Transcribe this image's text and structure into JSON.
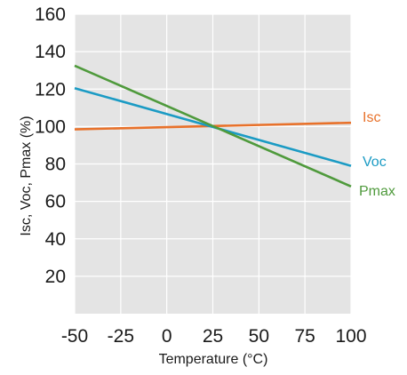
{
  "chart_data": {
    "type": "line",
    "title": "",
    "xlabel": "Temperature (°C)",
    "ylabel": "Isc, Voc, Pmax (%)",
    "xlim": [
      -50,
      100
    ],
    "ylim": [
      0,
      160
    ],
    "x_ticks": [
      -50,
      -25,
      0,
      25,
      50,
      75,
      100
    ],
    "y_ticks": [
      20,
      40,
      60,
      80,
      100,
      120,
      140,
      160
    ],
    "grid": true,
    "legend": "inline-right",
    "series": [
      {
        "name": "Isc",
        "color": "#e8712a",
        "x": [
          -50,
          100
        ],
        "y": [
          98.5,
          102
        ]
      },
      {
        "name": "Voc",
        "color": "#1b9bc4",
        "x": [
          -50,
          100
        ],
        "y": [
          120.5,
          79
        ]
      },
      {
        "name": "Pmax",
        "color": "#4f9a3c",
        "x": [
          -50,
          100
        ],
        "y": [
          132.5,
          68
        ]
      }
    ],
    "colors": {
      "plot_background": "#e4e4e4",
      "grid": "#ffffff"
    }
  }
}
